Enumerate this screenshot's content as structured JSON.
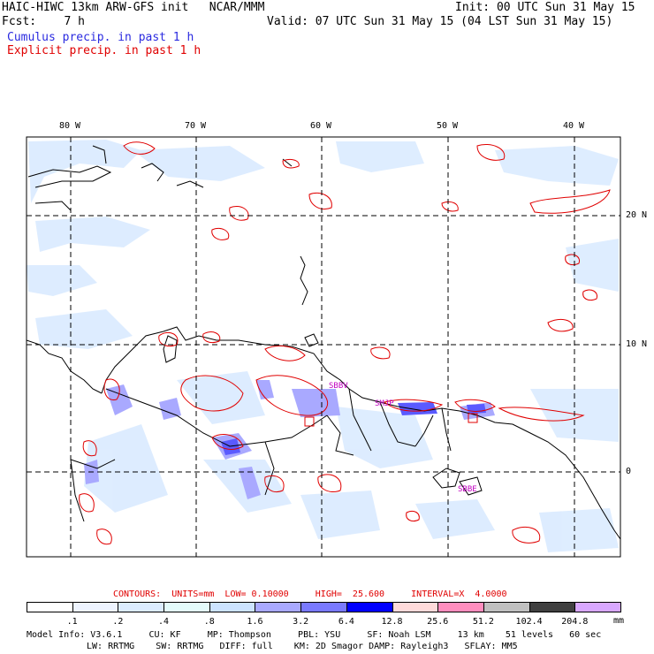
{
  "header": {
    "line1_left": "HAIC-HIWC 13km ARW-GFS init   NCAR/MMM",
    "line1_right": "Init: 00 UTC Sun 31 May 15",
    "line2_left": "Fcst:    7 h",
    "line2_right": "Valid: 07 UTC Sun 31 May 15 (04 LST Sun 31 May 15)",
    "line3": "Cumulus precip. in past 1 h",
    "line4": "Explicit precip. in past 1 h"
  },
  "map": {
    "lon_labels": [
      "80 W",
      "70 W",
      "60 W",
      "50 W",
      "40 W"
    ],
    "lat_labels": [
      "20 N",
      "10 N",
      "0"
    ],
    "stations": [
      "SBBV",
      "SMJP",
      "SBBE"
    ],
    "colors": {
      "coast": "#000000",
      "explicit_contour": "#e00000",
      "station_label": "#c000c0",
      "grid": "#000000"
    }
  },
  "contours_line": {
    "label": "CONTOURS:  UNITS=mm  LOW= 0.10000     HIGH=  25.600     INTERVAL=X  4.0000"
  },
  "colorbar": {
    "unit": "mm",
    "labels": [
      ".1",
      ".2",
      ".4",
      ".8",
      "1.6",
      "3.2",
      "6.4",
      "12.8",
      "25.6",
      "51.2",
      "102.4",
      "204.8"
    ],
    "colors": [
      "#ffffff",
      "#eef4ff",
      "#dcecff",
      "#e4fbfb",
      "#cce3ff",
      "#a9a9ff",
      "#7a7aff",
      "#0000ff",
      "#ffdada",
      "#ff8ebe",
      "#c0c0c0",
      "#404040",
      "#d9a8ff"
    ]
  },
  "footer": {
    "line1": "Model Info: V3.6.1     CU: KF     MP: Thompson     PBL: YSU     SF: Noah LSM     13 km    51 levels   60 sec",
    "line2": "LW: RRTMG    SW: RRTMG   DIFF: full    KM: 2D Smagor DAMP: Rayleigh3   SFLAY: MM5"
  }
}
